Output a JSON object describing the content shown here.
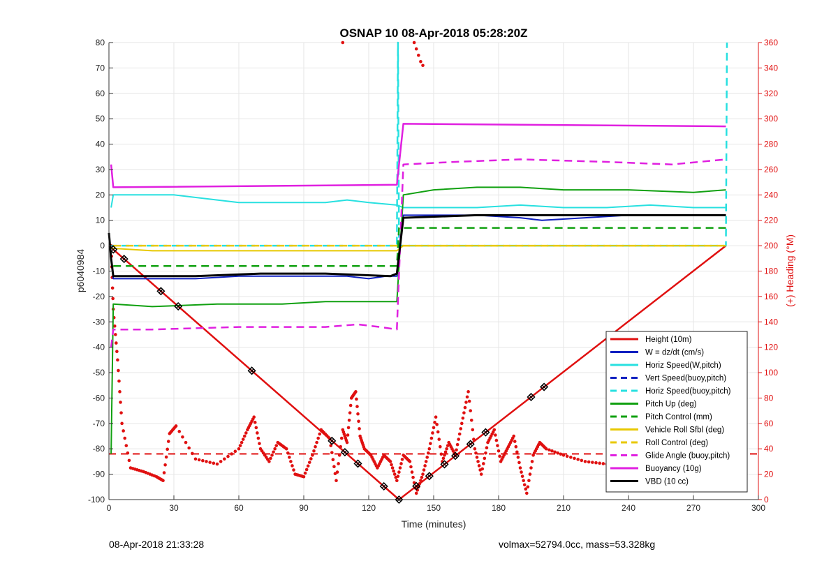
{
  "chart_data": {
    "type": "line",
    "title": "OSNAP 10 08-Apr-2018 05:28:20Z",
    "xlabel": "Time (minutes)",
    "ylabel": "p6040984",
    "y2label": "(+) Heading (°M)",
    "xlim": [
      0,
      300
    ],
    "ylim": [
      -100,
      80
    ],
    "y2lim": [
      0,
      360
    ],
    "xticks": [
      0,
      30,
      60,
      90,
      120,
      150,
      180,
      210,
      240,
      270,
      300
    ],
    "yticks": [
      -100,
      -90,
      -80,
      -70,
      -60,
      -50,
      -40,
      -30,
      -20,
      -10,
      0,
      10,
      20,
      30,
      40,
      50,
      60,
      70,
      80
    ],
    "y2ticks": [
      0,
      20,
      40,
      60,
      80,
      100,
      120,
      140,
      160,
      180,
      200,
      220,
      240,
      260,
      280,
      300,
      320,
      340,
      360
    ],
    "grid": true,
    "legend_position": "bottom-right",
    "series": [
      {
        "name": "Height (10m)",
        "color": "#e01010",
        "style": "solid",
        "width": 2.5,
        "x": [
          0,
          134,
          285
        ],
        "y": [
          0,
          -100,
          0
        ]
      },
      {
        "name": "W = dz/dt (cm/s)",
        "color": "#1020c0",
        "style": "solid",
        "width": 2,
        "x": [
          1,
          2,
          10,
          40,
          60,
          90,
          110,
          120,
          128,
          133,
          136,
          150,
          170,
          190,
          200,
          220,
          240,
          270,
          285
        ],
        "y": [
          -5,
          -13,
          -13,
          -13,
          -12,
          -12,
          -12,
          -13,
          -12,
          -12,
          12,
          12,
          12,
          11,
          10,
          11,
          12,
          12,
          12
        ]
      },
      {
        "name": "Horiz Speed(W,pitch)",
        "color": "#28e0e0",
        "style": "solid",
        "width": 2,
        "x": [
          1,
          2,
          10,
          30,
          50,
          60,
          80,
          100,
          110,
          120,
          133,
          136,
          150,
          170,
          190,
          210,
          230,
          250,
          270,
          285
        ],
        "y": [
          15,
          20,
          20,
          20,
          18,
          17,
          17,
          17,
          18,
          17,
          16,
          15,
          15,
          15,
          16,
          15,
          15,
          16,
          15,
          15
        ]
      },
      {
        "name": "Vert Speed(buoy,pitch)",
        "color": "#1020c0",
        "style": "dashed",
        "width": 2.5,
        "x": [],
        "y": []
      },
      {
        "name": "Horiz Speed(buoy,pitch)",
        "color": "#28e0e0",
        "style": "dashed",
        "width": 2.5,
        "x": [
          0,
          133,
          133.5,
          134,
          285,
          285.5
        ],
        "y": [
          0,
          0,
          80,
          0,
          0,
          80
        ]
      },
      {
        "name": "Pitch Up (deg)",
        "color": "#10a010",
        "style": "solid",
        "width": 2,
        "x": [
          1,
          2,
          20,
          50,
          80,
          100,
          120,
          133,
          136,
          150,
          170,
          190,
          210,
          240,
          270,
          285
        ],
        "y": [
          -82,
          -23,
          -24,
          -23,
          -23,
          -22,
          -22,
          -22,
          20,
          22,
          23,
          23,
          22,
          22,
          21,
          22
        ]
      },
      {
        "name": "Pitch Control (mm)",
        "color": "#10a010",
        "style": "dashed",
        "width": 2.5,
        "x": [
          2,
          133,
          134,
          285
        ],
        "y": [
          -8,
          -8,
          7,
          7
        ]
      },
      {
        "name": "Vehicle Roll Sfbl (deg)",
        "color": "#e8c800",
        "style": "solid",
        "width": 2,
        "x": [
          1,
          20,
          60,
          100,
          130,
          133,
          136,
          170,
          210,
          250,
          285
        ],
        "y": [
          -1,
          -2,
          -2,
          -2,
          -2,
          -2,
          0,
          0,
          0,
          0,
          0
        ]
      },
      {
        "name": "Roll Control (deg)",
        "color": "#e8c800",
        "style": "dashed",
        "width": 2.5,
        "x": [
          2,
          133,
          134,
          285
        ],
        "y": [
          0,
          0,
          0,
          0
        ]
      },
      {
        "name": "Glide Angle (buoy,pitch)",
        "color": "#e020e0",
        "style": "dashed",
        "width": 2.5,
        "x": [
          1,
          2,
          20,
          60,
          100,
          115,
          125,
          133,
          136,
          160,
          190,
          230,
          260,
          285
        ],
        "y": [
          -40,
          -33,
          -33,
          -32,
          -32,
          -31,
          -32,
          -33,
          32,
          33,
          34,
          33,
          32,
          34
        ]
      },
      {
        "name": "Buoyancy (10g)",
        "color": "#e020e0",
        "style": "solid",
        "width": 2.5,
        "x": [
          1,
          2,
          133,
          136,
          285
        ],
        "y": [
          32,
          23,
          24,
          48,
          47
        ]
      },
      {
        "name": "VBD (10 cc)",
        "color": "#000000",
        "style": "solid",
        "width": 3,
        "x": [
          0,
          1,
          2,
          10,
          40,
          70,
          100,
          130,
          133,
          136,
          170,
          210,
          250,
          285
        ],
        "y": [
          5,
          -5,
          -12,
          -12,
          -12,
          -11,
          -11,
          -12,
          -11,
          11,
          12,
          12,
          12,
          12
        ]
      }
    ],
    "heading": {
      "color": "#e01010",
      "axis": "right",
      "dashed_mean": 36,
      "x": [
        1,
        2,
        4,
        6,
        10,
        16,
        22,
        25,
        28,
        31,
        40,
        50,
        60,
        64,
        67,
        70,
        74,
        78,
        82,
        86,
        90,
        94,
        98,
        102,
        105,
        108,
        110,
        112,
        114,
        116,
        118,
        121,
        124,
        127,
        130,
        133,
        136,
        139,
        142,
        145,
        148,
        151,
        154,
        157,
        160,
        163,
        166,
        169,
        172,
        175,
        178,
        181,
        184,
        187,
        190,
        193,
        196,
        199,
        202,
        210,
        220,
        230,
        240,
        250,
        260,
        270,
        280,
        285
      ],
      "y": [
        200,
        150,
        110,
        60,
        25,
        22,
        18,
        15,
        52,
        58,
        32,
        28,
        40,
        55,
        65,
        40,
        30,
        45,
        40,
        20,
        18,
        35,
        55,
        48,
        15,
        55,
        45,
        80,
        85,
        50,
        40,
        35,
        25,
        35,
        30,
        15,
        35,
        30,
        5,
        20,
        40,
        65,
        30,
        45,
        35,
        60,
        85,
        40,
        20,
        45,
        55,
        30,
        40,
        50,
        25,
        5,
        35,
        45,
        40,
        35,
        30,
        28,
        40,
        45,
        42,
        50,
        45,
        40
      ]
    },
    "heading_top_cluster": {
      "x": [
        108,
        141,
        142,
        143,
        144,
        145
      ],
      "y": [
        360,
        360,
        355,
        350,
        345,
        342
      ]
    },
    "markers_on_height": {
      "shape": "diamond-x",
      "x": [
        2,
        7,
        24,
        32,
        66,
        103,
        109,
        115,
        127,
        134,
        142,
        148,
        155,
        160,
        167,
        174,
        195,
        201
      ]
    }
  },
  "footer": {
    "left": "08-Apr-2018 21:33:28",
    "right": "volmax=52794.0cc, mass=53.328kg"
  }
}
